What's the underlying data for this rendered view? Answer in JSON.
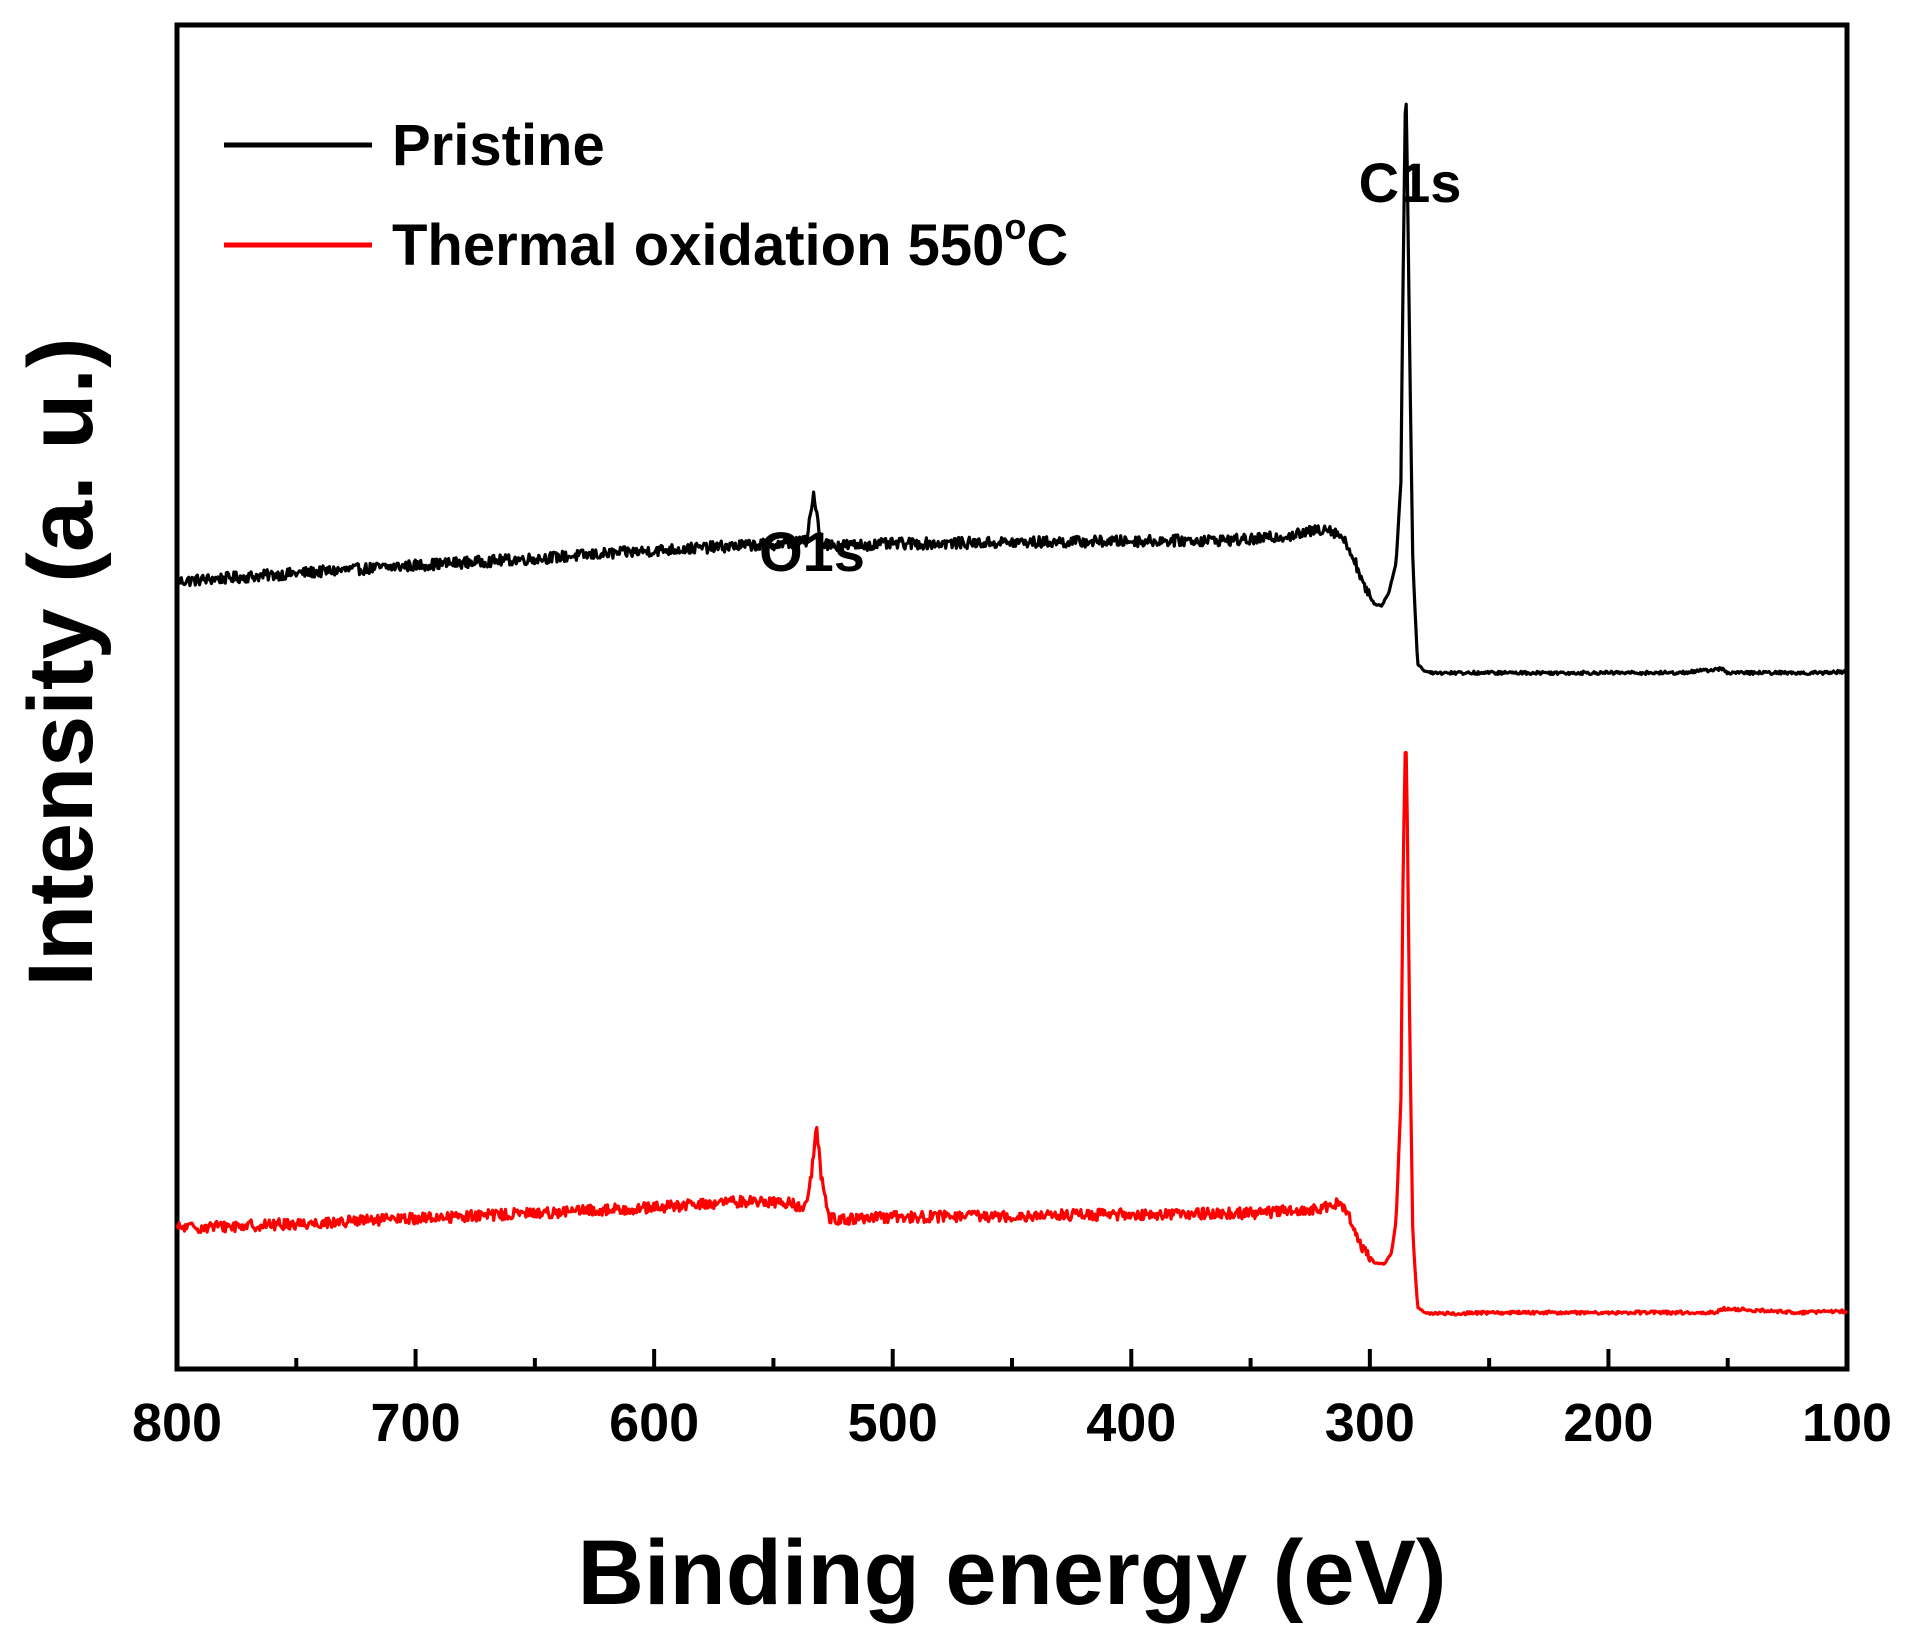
{
  "chart_data": {
    "type": "line",
    "title": "",
    "xlabel": "Binding energy (eV)",
    "ylabel": "Intensity (a. u.)",
    "xlim": [
      800,
      100
    ],
    "x_reversed": true,
    "ylim": [
      0,
      100
    ],
    "y_ticks_labeled": false,
    "x_ticks": [
      "800",
      "700",
      "600",
      "500",
      "400",
      "300",
      "200",
      "100"
    ],
    "grid": false,
    "legend": {
      "position": "top-left",
      "entries": [
        {
          "name": "Pristine",
          "color": "#000000"
        },
        {
          "name": "Thermal oxidation 550",
          "superscript": "o",
          "unit": "C",
          "color": "#ff0000"
        }
      ]
    },
    "annotations": [
      {
        "text": "O1s",
        "x": 532
      },
      {
        "text": "C1s",
        "x": 285
      }
    ],
    "series": [
      {
        "name": "Pristine",
        "color": "#000000",
        "x": [
          800,
          750,
          700,
          650,
          600,
          560,
          545,
          536,
          533,
          530,
          525,
          515,
          500,
          450,
          400,
          350,
          330,
          318,
          312,
          307,
          302,
          298,
          295,
          292,
          289,
          287,
          286,
          285,
          284.5,
          283.5,
          282,
          280,
          277,
          272,
          250,
          200,
          170,
          152,
          150,
          110,
          100
        ],
        "values": [
          58.6,
          59.2,
          59.8,
          60.3,
          60.9,
          61.3,
          61.4,
          61.6,
          65.2,
          61.5,
          61.3,
          61.3,
          61.4,
          61.5,
          61.6,
          61.7,
          62.1,
          62.6,
          62.0,
          60.5,
          58.0,
          56.9,
          56.8,
          57.8,
          60.0,
          66.0,
          82.0,
          96.3,
          92.0,
          78.0,
          60.0,
          52.5,
          51.9,
          51.8,
          51.8,
          51.8,
          51.8,
          52.1,
          51.8,
          51.8,
          51.9
        ]
      },
      {
        "name": "Thermal oxidation 550oC",
        "color": "#ff0000",
        "x": [
          800,
          750,
          700,
          650,
          600,
          560,
          545,
          537,
          534,
          532,
          530,
          527,
          520,
          500,
          450,
          400,
          350,
          320,
          313,
          308,
          303,
          298,
          294,
          291,
          289,
          287,
          286,
          285,
          284.5,
          283.5,
          282,
          280,
          277,
          272,
          250,
          200,
          155,
          152,
          120,
          100
        ],
        "values": [
          10.5,
          10.8,
          11.2,
          11.6,
          12.0,
          12.5,
          12.4,
          12.0,
          14.5,
          18.0,
          14.5,
          11.3,
          11.1,
          11.3,
          11.4,
          11.5,
          11.6,
          11.9,
          12.3,
          11.2,
          9.0,
          7.9,
          7.8,
          8.6,
          11.0,
          20.0,
          38.0,
          47.8,
          44.0,
          28.0,
          10.0,
          4.6,
          4.2,
          4.1,
          4.2,
          4.2,
          4.2,
          4.5,
          4.2,
          4.3
        ]
      }
    ]
  }
}
